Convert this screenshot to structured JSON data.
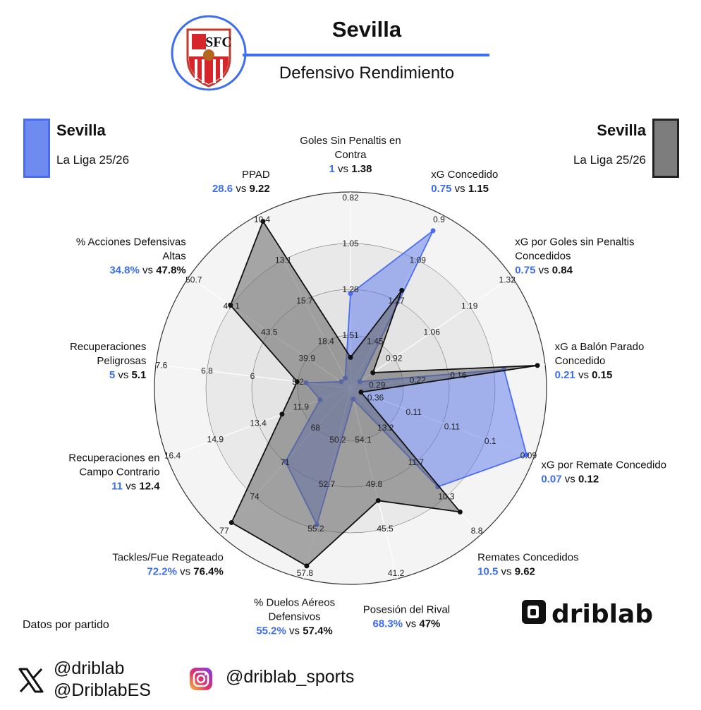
{
  "header": {
    "title": "Sevilla",
    "subtitle": "Defensivo Rendimiento",
    "crest_text": "SFC"
  },
  "legend": {
    "left": {
      "team": "Sevilla",
      "league": "La Liga 25/26",
      "color": "#4a6cf0"
    },
    "right": {
      "team": "Sevilla",
      "league": "La Liga 25/26",
      "color": "#222222"
    }
  },
  "footer": {
    "note": "Datos por partido",
    "x_handle_1": "@driblab",
    "x_handle_2": "@DriblabES",
    "ig_handle": "@driblab_sports",
    "brand": "driblab"
  },
  "icons": {
    "x": "x-logo-icon",
    "instagram": "instagram-icon",
    "crest": "sevilla-crest-icon",
    "brand": "driblab-logo-icon"
  },
  "chart_data": {
    "type": "radar",
    "series": [
      {
        "name": "Sevilla",
        "color": "#4a6cf0",
        "fill": "rgba(90,120,235,0.5)"
      },
      {
        "name": "Sevilla",
        "color": "#111111",
        "fill": "rgba(100,100,100,0.55)"
      }
    ],
    "axes": [
      {
        "label": [
          "Goles Sin Penaltis en",
          "Contra"
        ],
        "v1": "1",
        "v2": "1.38",
        "ticks": [
          "1.51",
          "1.28",
          "1.05",
          "0.82"
        ],
        "r1": 0.47,
        "r2": 0.11
      },
      {
        "label": [
          "xG Concedido"
        ],
        "v1": "0.75",
        "v2": "1.15",
        "ticks": [
          "1.45",
          "1.27",
          "1.09",
          "0.9"
        ],
        "r1": 0.94,
        "r2": 0.56
      },
      {
        "label": [
          "xG por Goles sin Penaltis",
          "Concedidos"
        ],
        "v1": "0.75",
        "v2": "0.84",
        "ticks": [
          "0.92",
          "1.06",
          "1.19",
          "1.32"
        ],
        "r1": 0.0,
        "r2": 0.09
      },
      {
        "label": [
          "xG a Balón Parado",
          "Concedido"
        ],
        "v1": "0.21",
        "v2": "0.15",
        "ticks": [
          "0.29",
          "0.22",
          "0.16"
        ],
        "r1": 0.81,
        "r2": 1.0
      },
      {
        "label": [
          "xG por Remate Concedido"
        ],
        "v1": "0.07",
        "v2": "0.12",
        "ticks": [
          "0.36",
          "0.11",
          "0.11",
          "0.1",
          "0.09"
        ],
        "r1": 1.0,
        "r2": 0.0
      },
      {
        "label": [
          "Remates Concedidos"
        ],
        "v1": "10.5",
        "v2": "9.62",
        "ticks": [
          "13.2",
          "11.7",
          "10.3",
          "8.8"
        ],
        "r1": 0.68,
        "r2": 0.87
      },
      {
        "label": [
          "Posesión del Rival"
        ],
        "v1": "68.3%",
        "v2": "47%",
        "ticks": [
          "54.1",
          "49.8",
          "45.5",
          "41.2"
        ],
        "r1": 0.0,
        "r2": 0.59
      },
      {
        "label": [
          "% Duelos Aéreos",
          "Defensivos"
        ],
        "v1": "55.2%",
        "v2": "57.4%",
        "ticks": [
          "50.2",
          "52.7",
          "55.2",
          "57.8"
        ],
        "r1": 0.73,
        "r2": 0.97
      },
      {
        "label": [
          "Tackles/Fue Regateado"
        ],
        "v1": "72.2%",
        "v2": "76.4%",
        "ticks": [
          "68",
          "71",
          "74",
          "77"
        ],
        "r1": 0.49,
        "r2": 0.95
      },
      {
        "label": [
          "Recuperaciones en",
          "Campo Contrario"
        ],
        "v1": "11",
        "v2": "12.4",
        "ticks": [
          "11.9",
          "13.4",
          "14.9",
          "16.4"
        ],
        "r1": 0.12,
        "r2": 0.35
      },
      {
        "label": [
          "Recuperaciones",
          "Peligrosas"
        ],
        "v1": "5",
        "v2": "5.1",
        "ticks": [
          "5.2",
          "6",
          "6.8",
          "7.6"
        ],
        "r1": 0.19,
        "r2": 0.24
      },
      {
        "label": [
          "% Acciones Defensivas",
          "Altas"
        ],
        "v1": "34.8%",
        "v2": "47.8%",
        "ticks": [
          "39.9",
          "43.5",
          "47.1",
          "50.7"
        ],
        "r1": 0.0,
        "r2": 0.76
      },
      {
        "label": [
          "PPAD"
        ],
        "v1": "28.6",
        "v2": "9.22",
        "ticks": [
          "18.4",
          "15.7",
          "13.1",
          "10.4"
        ],
        "r1": 0.0,
        "r2": 1.0
      }
    ]
  }
}
